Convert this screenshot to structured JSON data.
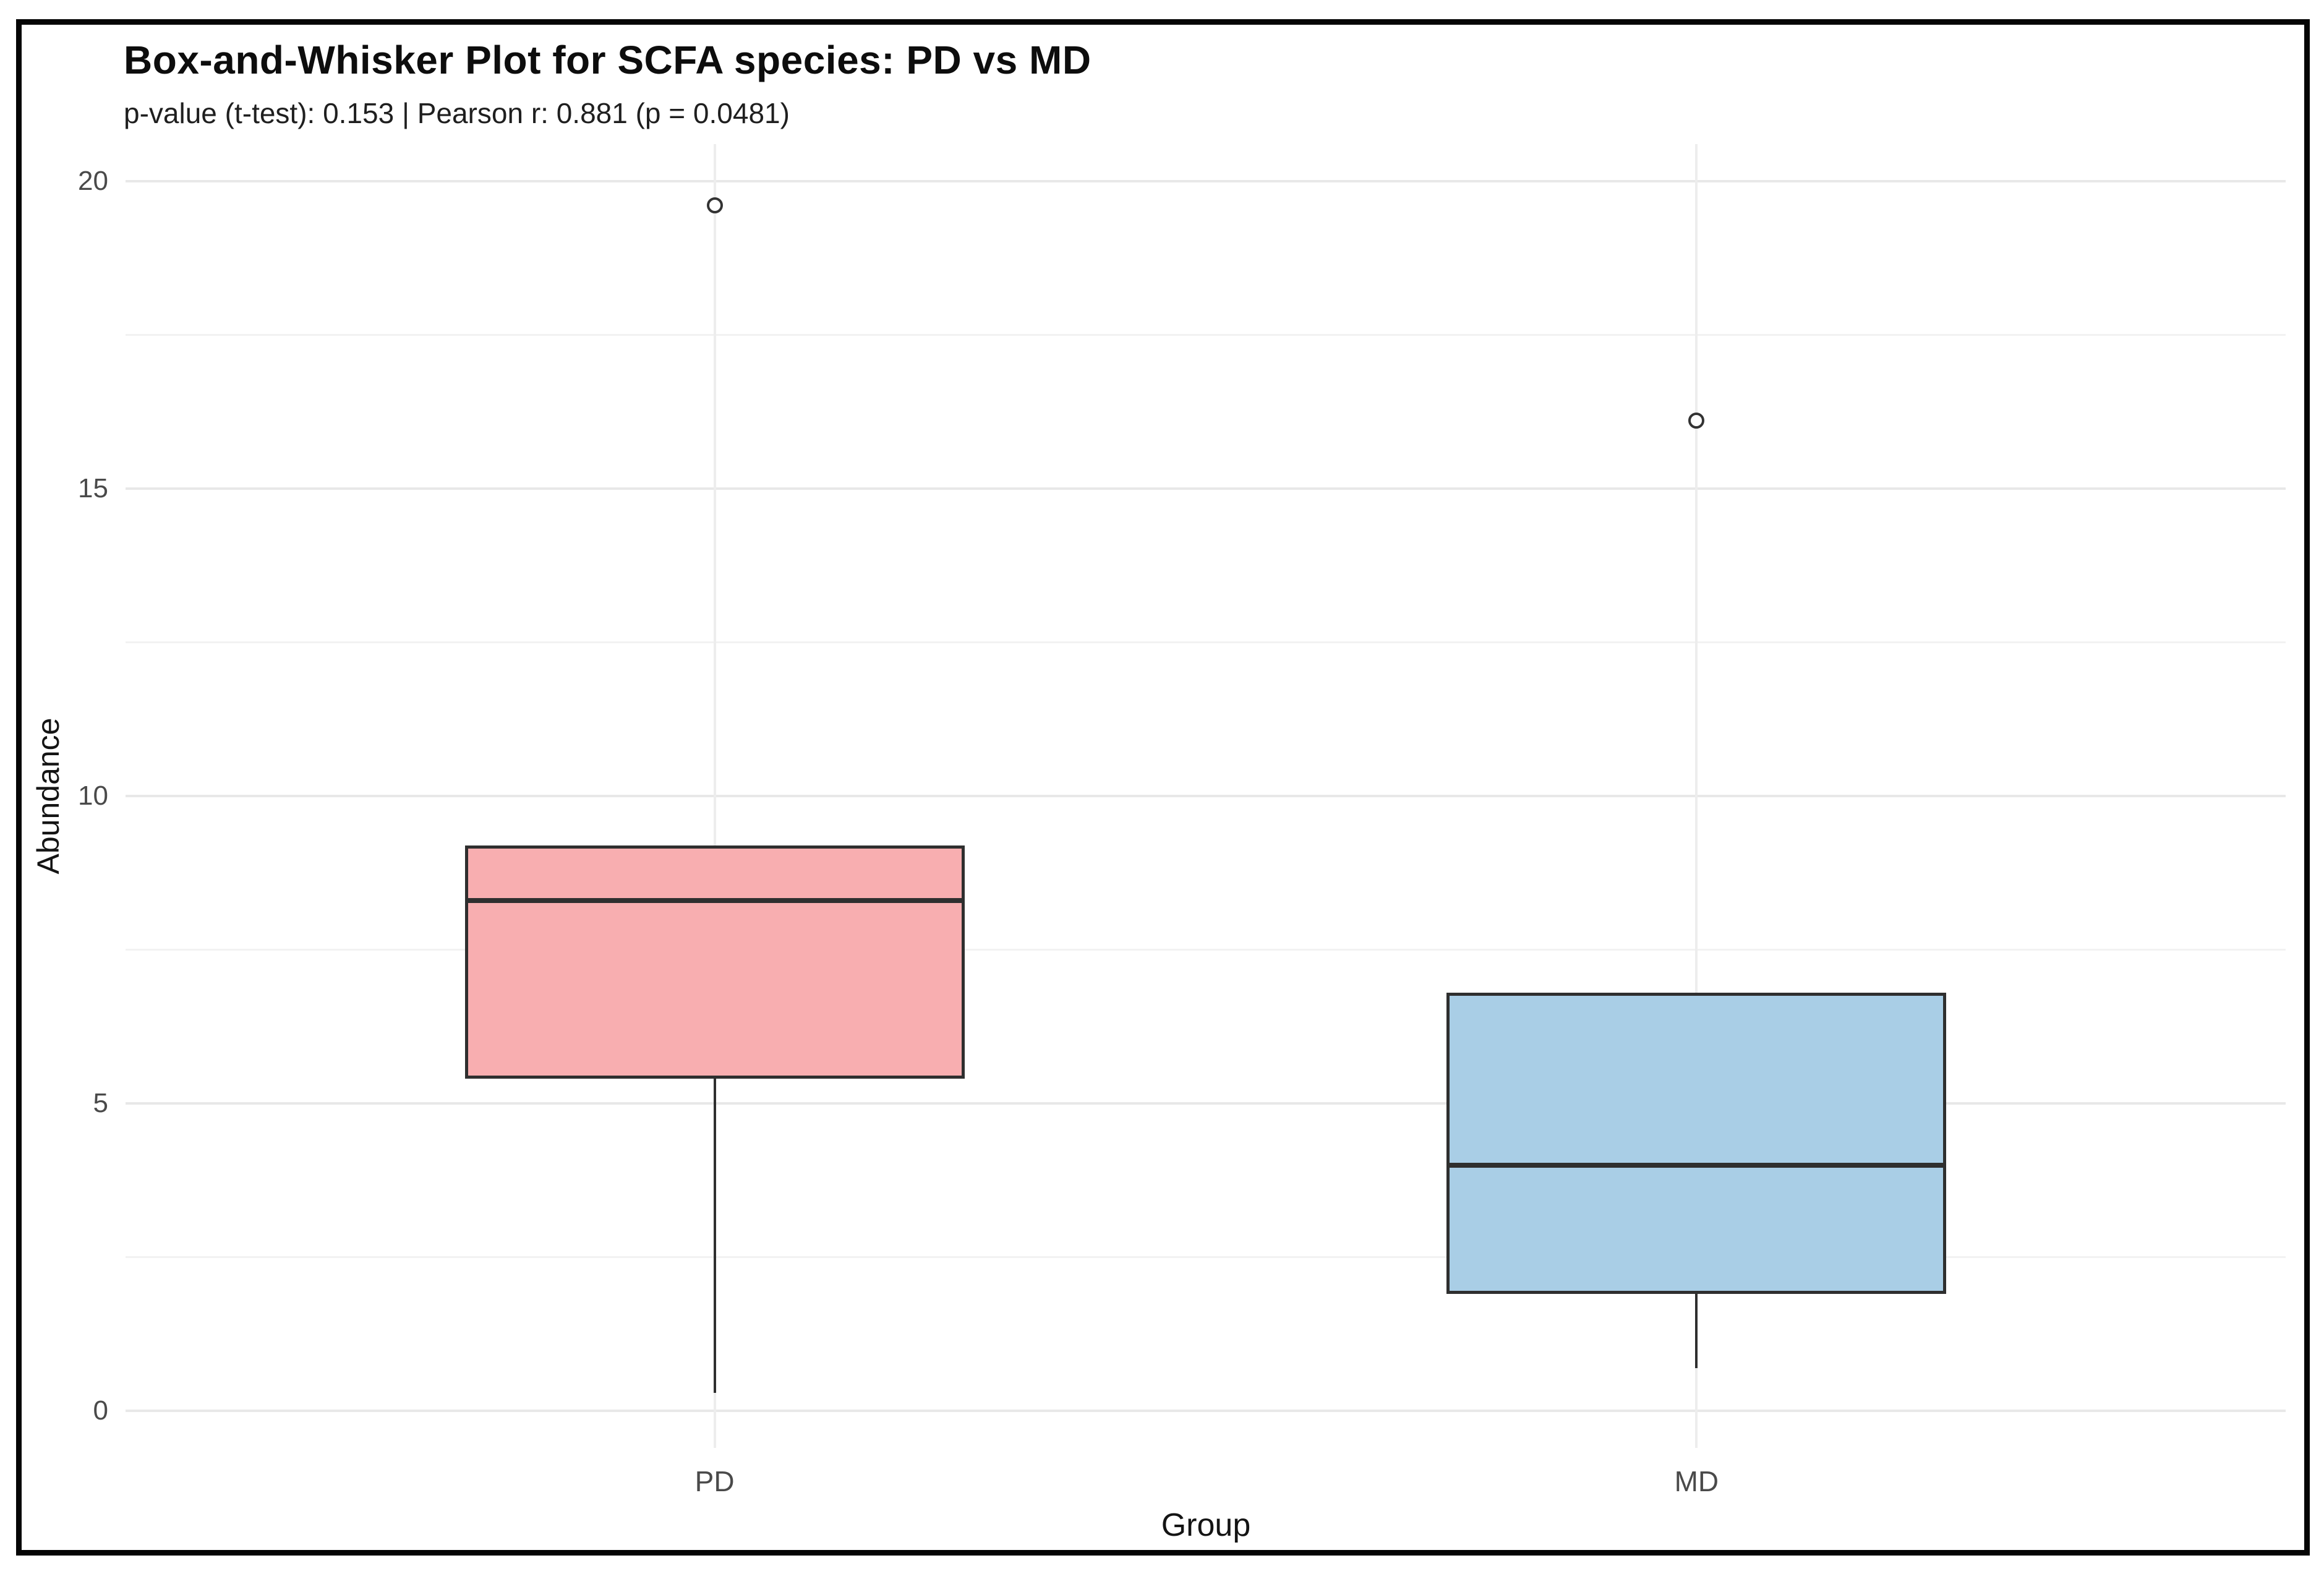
{
  "chart_data": {
    "type": "box",
    "title": "Box-and-Whisker Plot for SCFA species: PD vs MD",
    "subtitle": "p-value (t-test): 0.153 | Pearson r: 0.881 (p = 0.0481)",
    "xlabel": "Group",
    "ylabel": "Abundance",
    "categories": [
      "PD",
      "MD"
    ],
    "yticks": [
      0,
      5,
      10,
      15,
      20
    ],
    "yticks_minor": [
      2.5,
      7.5,
      12.5,
      17.5
    ],
    "ylim": [
      -0.6,
      20.6
    ],
    "grid": "horizontal major+minor, vertical at category centers",
    "legend": "none",
    "series": [
      {
        "name": "PD",
        "fill": "#f8aeb0",
        "whisker_low": 0.3,
        "q1": 5.4,
        "median": 8.3,
        "q3": 9.2,
        "whisker_high": 9.2,
        "outliers": [
          19.6
        ]
      },
      {
        "name": "MD",
        "fill": "#a9cee6",
        "whisker_low": 0.7,
        "q1": 1.9,
        "median": 4.0,
        "q3": 6.8,
        "whisker_high": 6.8,
        "outliers": [
          16.1
        ]
      }
    ],
    "stats": {
      "p_value_ttest": 0.153,
      "pearson_r": 0.881,
      "pearson_p": 0.0481
    },
    "colors": {
      "box_stroke": "#2f2f2f",
      "grid_major": "#e8e8e8",
      "grid_minor": "#f2f2f2",
      "grid_vertical": "#ededed",
      "tick_label": "#4a4a4a"
    }
  }
}
